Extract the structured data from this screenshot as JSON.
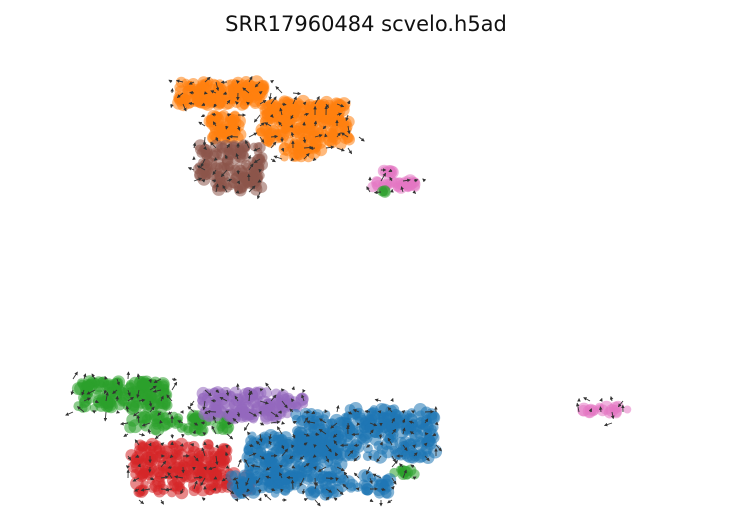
{
  "title": "SRR17960484 scvelo.h5ad",
  "chart_data": {
    "type": "scatter",
    "title": "SRR17960484 scvelo.h5ad",
    "xlabel": "",
    "ylabel": "",
    "axes_visible": false,
    "legend": "none",
    "x_range": [
      0,
      100
    ],
    "y_range": [
      0,
      100
    ],
    "overlay": "velocity stream arrows on grid",
    "clusters": [
      {
        "color": "#ff7f0e",
        "x": [
          [
            21.0,
            33.9
          ],
          [
            34.0,
            46.2
          ],
          [
            33.4,
            47.2
          ],
          [
            25.6,
            30.3
          ],
          [
            37.0,
            42.6
          ]
        ],
        "y": [
          [
            79.4,
            90.3
          ],
          [
            72.1,
            81.1
          ],
          [
            61.8,
            72.4
          ],
          [
            64.3,
            75.1
          ],
          [
            55.8,
            61.6
          ]
        ],
        "n": [
          160,
          140,
          110,
          60,
          30
        ]
      },
      {
        "color": "#8c564b",
        "x": [
          [
            23.8,
            33.7
          ],
          [
            26.4,
            33.7
          ]
        ],
        "y": [
          [
            45.9,
            61.4
          ],
          [
            40.7,
            47.3
          ]
        ],
        "n": [
          110,
          40
        ]
      },
      {
        "color": "#e377c2",
        "x": [
          [
            50.4,
            57.6
          ],
          [
            52.1,
            53.6
          ],
          [
            82.0,
            89.0
          ]
        ],
        "y": [
          [
            41.8,
            45.6
          ],
          [
            48.0,
            49.6
          ],
          [
            -60.6,
            -57.3
          ]
        ],
        "n": [
          30,
          8,
          18
        ]
      },
      {
        "color": "#2ca02c",
        "x": [
          [
            5.7,
            19.3
          ],
          [
            13.6,
            29.0
          ],
          [
            53.6,
            56.8
          ],
          [
            51.3,
            52.6
          ]
        ],
        "y": [
          [
            -58.3,
            -46.1
          ],
          [
            -68.6,
            -61.6
          ],
          [
            -88.8,
            -85.9
          ],
          [
            40.0,
            41.4
          ]
        ],
        "n": [
          160,
          70,
          12,
          4
        ]
      },
      {
        "color": "#9467bd",
        "x": [
          [
            24.4,
            37.5
          ],
          [
            36.0,
            40.2
          ]
        ],
        "y": [
          [
            -63.2,
            -50.5
          ],
          [
            -58.3,
            -53.4
          ]
        ],
        "n": [
          120,
          20
        ]
      },
      {
        "color": "#d62728",
        "x": [
          [
            13.8,
            28.3
          ],
          [
            14.5,
            32.2
          ]
        ],
        "y": [
          [
            -89.6,
            -74.7
          ],
          [
            -96.7,
            -87.7
          ]
        ],
        "n": [
          150,
          70
        ]
      },
      {
        "color": "#1f77b4",
        "x": [
          [
            31.5,
            45.6
          ],
          [
            38.7,
            59.9
          ],
          [
            29.0,
            53.0
          ],
          [
            45.6,
            59.5
          ]
        ],
        "y": [
          [
            -90.8,
            -70.4
          ],
          [
            -80.8,
            -60.2
          ],
          [
            -97.4,
            -88.7
          ],
          [
            -69.0,
            -58.3
          ]
        ],
        "n": [
          200,
          220,
          120,
          60
        ]
      }
    ]
  }
}
